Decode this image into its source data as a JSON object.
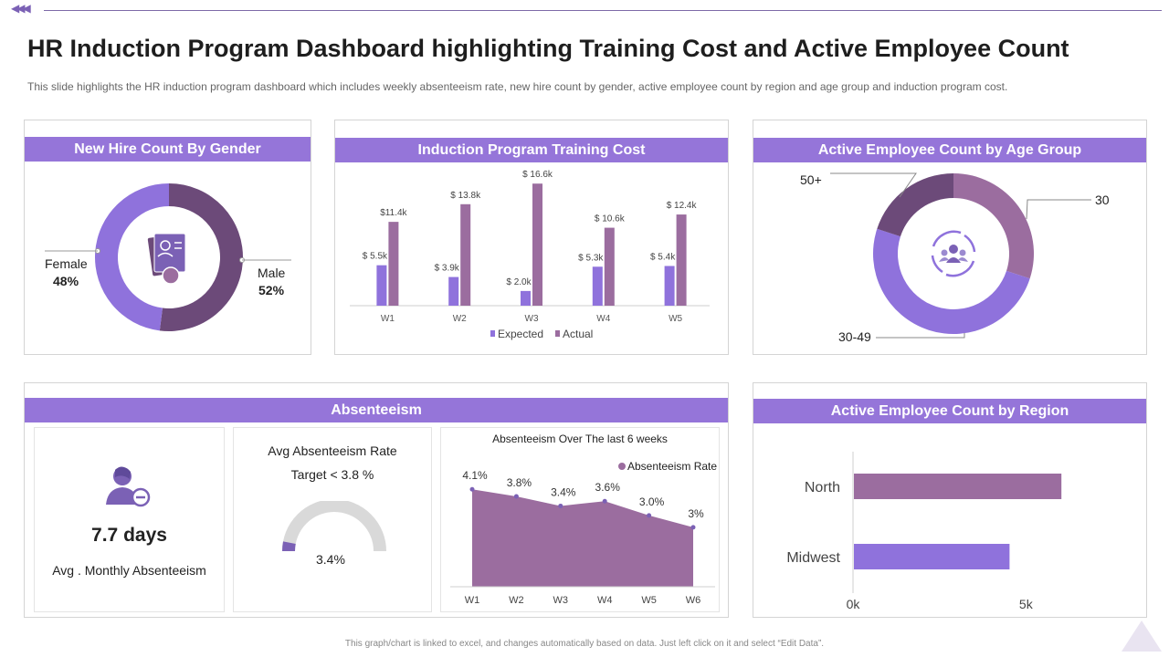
{
  "header": {
    "title": "HR Induction Program Dashboard highlighting Training Cost and Active Employee Count",
    "subtitle": "This slide highlights the HR induction program dashboard which includes weekly absenteeism rate, new hire count by gender, active employee count by region and age group and induction program cost."
  },
  "footer": "This graph/chart is linked to excel, and changes automatically based on data. Just left click on it and select “Edit Data”.",
  "colors": {
    "accent": "#9575d9",
    "dark_purple": "#6c4a79",
    "mid_purple": "#9b6d9f",
    "light_purple": "#8f72dc"
  },
  "gender_panel": {
    "title": "New Hire Count By Gender",
    "female_label": "Female",
    "female_value": "48%",
    "male_label": "Male",
    "male_value": "52%"
  },
  "cost_panel": {
    "title": "Induction Program Training Cost"
  },
  "age_panel": {
    "title": "Active Employee Count by Age Group",
    "label_50": "50+",
    "label_30": "30",
    "label_3049": "30-49"
  },
  "absenteeism_panel": {
    "title": "Absenteeism",
    "days_value": "7.7 days",
    "days_caption": "Avg . Monthly Absenteeism",
    "rate_title": "Avg Absenteeism Rate",
    "rate_target": "Target < 3.8 %",
    "rate_value": "3.4%"
  },
  "region_panel": {
    "title": "Active Employee Count by Region"
  },
  "chart_data": [
    {
      "id": "gender",
      "type": "pie",
      "title": "New Hire Count By Gender",
      "categories": [
        "Female",
        "Male"
      ],
      "values": [
        48,
        52
      ],
      "colors": [
        "#8f72dc",
        "#6c4a79"
      ]
    },
    {
      "id": "cost",
      "type": "bar",
      "title": "Induction Program Training Cost",
      "categories": [
        "W1",
        "W2",
        "W3",
        "W4",
        "W5"
      ],
      "series": [
        {
          "name": "Expected",
          "color": "#8f72dc",
          "values": [
            5.5,
            3.9,
            2.0,
            5.3,
            5.4
          ],
          "labels": [
            "$ 5.5k",
            "$ 3.9k",
            "$ 2.0k",
            "$ 5.3k",
            "$ 5.4k"
          ]
        },
        {
          "name": "Actual",
          "color": "#9b6d9f",
          "values": [
            11.4,
            13.8,
            16.6,
            10.6,
            12.4
          ],
          "labels": [
            "$11.4k",
            "$ 13.8k",
            "$ 16.6k",
            "$ 10.6k",
            "$ 12.4k"
          ]
        }
      ],
      "ylim": [
        0,
        17
      ]
    },
    {
      "id": "age",
      "type": "pie",
      "title": "Active Employee Count by Age Group",
      "categories": [
        "30",
        "30-49",
        "50+"
      ],
      "values": [
        30,
        50,
        20
      ],
      "colors": [
        "#9b6d9f",
        "#8f72dc",
        "#6c4a79"
      ]
    },
    {
      "id": "absenteeism",
      "type": "area",
      "title": "Absenteeism Over The last 6 weeks",
      "legend": "Absenteeism Rate",
      "categories": [
        "W1",
        "W2",
        "W3",
        "W4",
        "W5",
        "W6"
      ],
      "values": [
        4.1,
        3.8,
        3.4,
        3.6,
        3.0,
        2.5
      ],
      "labels": [
        "4.1%",
        "3.8%",
        "3.4%",
        "3.6%",
        "3.0%",
        "3%"
      ],
      "ylim": [
        0,
        4.3
      ]
    },
    {
      "id": "gauge",
      "type": "bar",
      "title": "Avg Absenteeism Rate",
      "values": [
        3.4
      ],
      "value_fraction": 0.06
    },
    {
      "id": "region",
      "type": "bar",
      "orientation": "horizontal",
      "title": "Active Employee Count by Region",
      "categories": [
        "North",
        "Midwest"
      ],
      "values": [
        6000,
        4500
      ],
      "xticks": [
        "0k",
        "5k"
      ],
      "xlim": [
        0,
        7500
      ]
    }
  ]
}
